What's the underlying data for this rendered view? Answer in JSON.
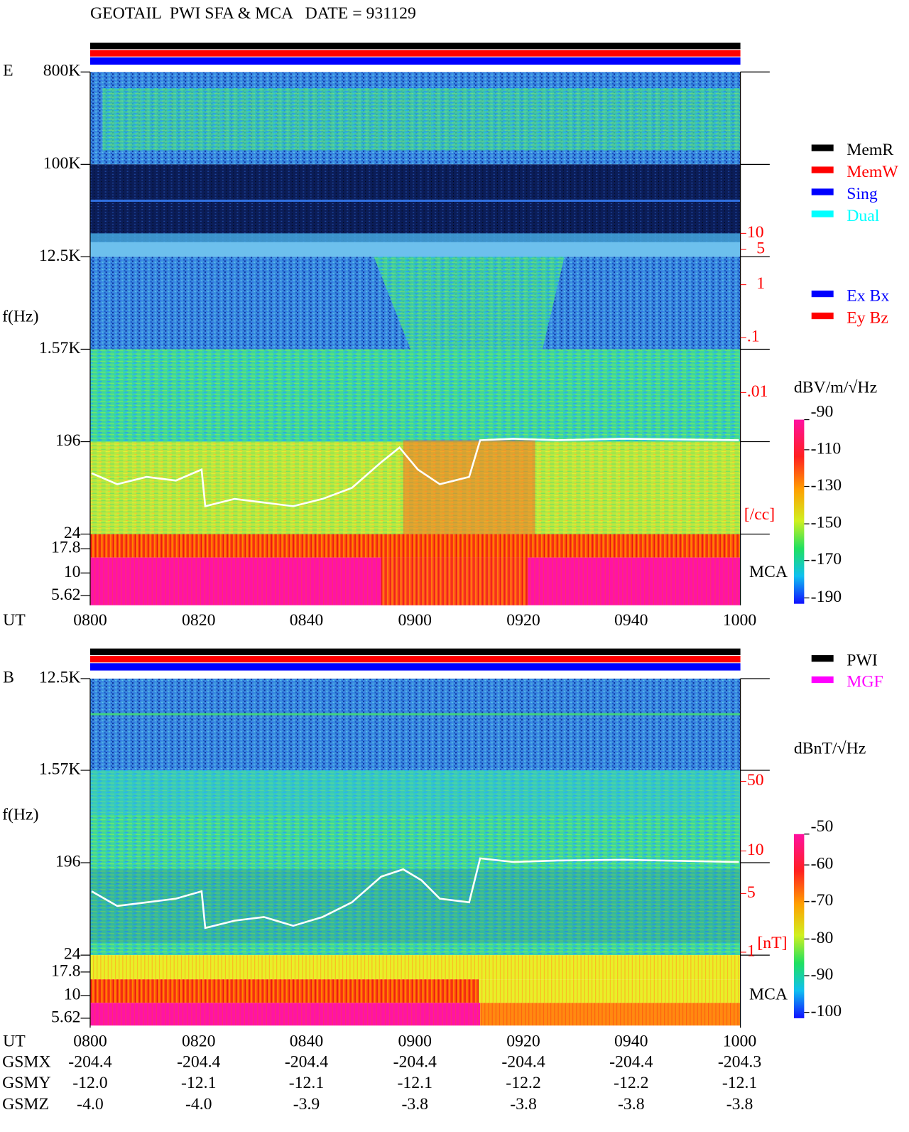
{
  "header": {
    "title": "GEOTAIL  PWI SFA & MCA   DATE = 931129"
  },
  "panels": [
    {
      "component": "E",
      "y_label": "f(Hz)",
      "freq_ticks": [
        "800K",
        "100K",
        "12.5K",
        "1.57K",
        "196",
        "24",
        "17.8",
        "10",
        "5.62"
      ],
      "time_label": "UT",
      "time_ticks": [
        "0800",
        "0820",
        "0840",
        "0900",
        "0920",
        "0940",
        "1000"
      ],
      "right_ticks": [
        "10",
        "5",
        "1",
        ".1",
        ".01"
      ],
      "right_unit": "[/cc]",
      "mca_label": "MCA",
      "legend": [
        {
          "label": "MemR",
          "color": "#000000"
        },
        {
          "label": "MemW",
          "color": "#ff0000"
        },
        {
          "label": "Sing",
          "color": "#0000ff"
        },
        {
          "label": "Dual",
          "color": "#00ffff"
        }
      ],
      "legend2": [
        {
          "label": "Ex Bx",
          "color": "#0000ff"
        },
        {
          "label": "Ey Bz",
          "color": "#ff0000"
        }
      ],
      "colorbar": {
        "unit": "dBV/m/√Hz",
        "ticks": [
          "-90",
          "-110",
          "-130",
          "-150",
          "-170",
          "-190"
        ]
      }
    },
    {
      "component": "B",
      "y_label": "f(Hz)",
      "freq_ticks": [
        "12.5K",
        "1.57K",
        "196",
        "24",
        "17.8",
        "10",
        "5.62"
      ],
      "time_label": "UT",
      "time_ticks": [
        "0800",
        "0820",
        "0840",
        "0900",
        "0920",
        "0940",
        "1000"
      ],
      "right_ticks": [
        "50",
        "10",
        "5",
        "1"
      ],
      "right_unit": "[nT]",
      "mca_label": "MCA",
      "legend": [
        {
          "label": "PWI",
          "color": "#000000"
        },
        {
          "label": "MGF",
          "color": "#ff00ff"
        }
      ],
      "colorbar": {
        "unit": "dBnT/√Hz",
        "ticks": [
          "-50",
          "-60",
          "-70",
          "-80",
          "-90",
          "-100"
        ]
      }
    }
  ],
  "orbit": {
    "rows": [
      {
        "label": "GSMX",
        "values": [
          "-204.4",
          "-204.4",
          "-204.4",
          "-204.4",
          "-204.4",
          "-204.4",
          "-204.3"
        ]
      },
      {
        "label": "GSMY",
        "values": [
          "-12.0",
          "-12.1",
          "-12.1",
          "-12.1",
          "-12.2",
          "-12.2",
          "-12.1"
        ]
      },
      {
        "label": "GSMZ",
        "values": [
          "-4.0",
          "-4.0",
          "-3.9",
          "-3.8",
          "-3.8",
          "-3.8",
          "-3.8"
        ]
      }
    ]
  }
}
